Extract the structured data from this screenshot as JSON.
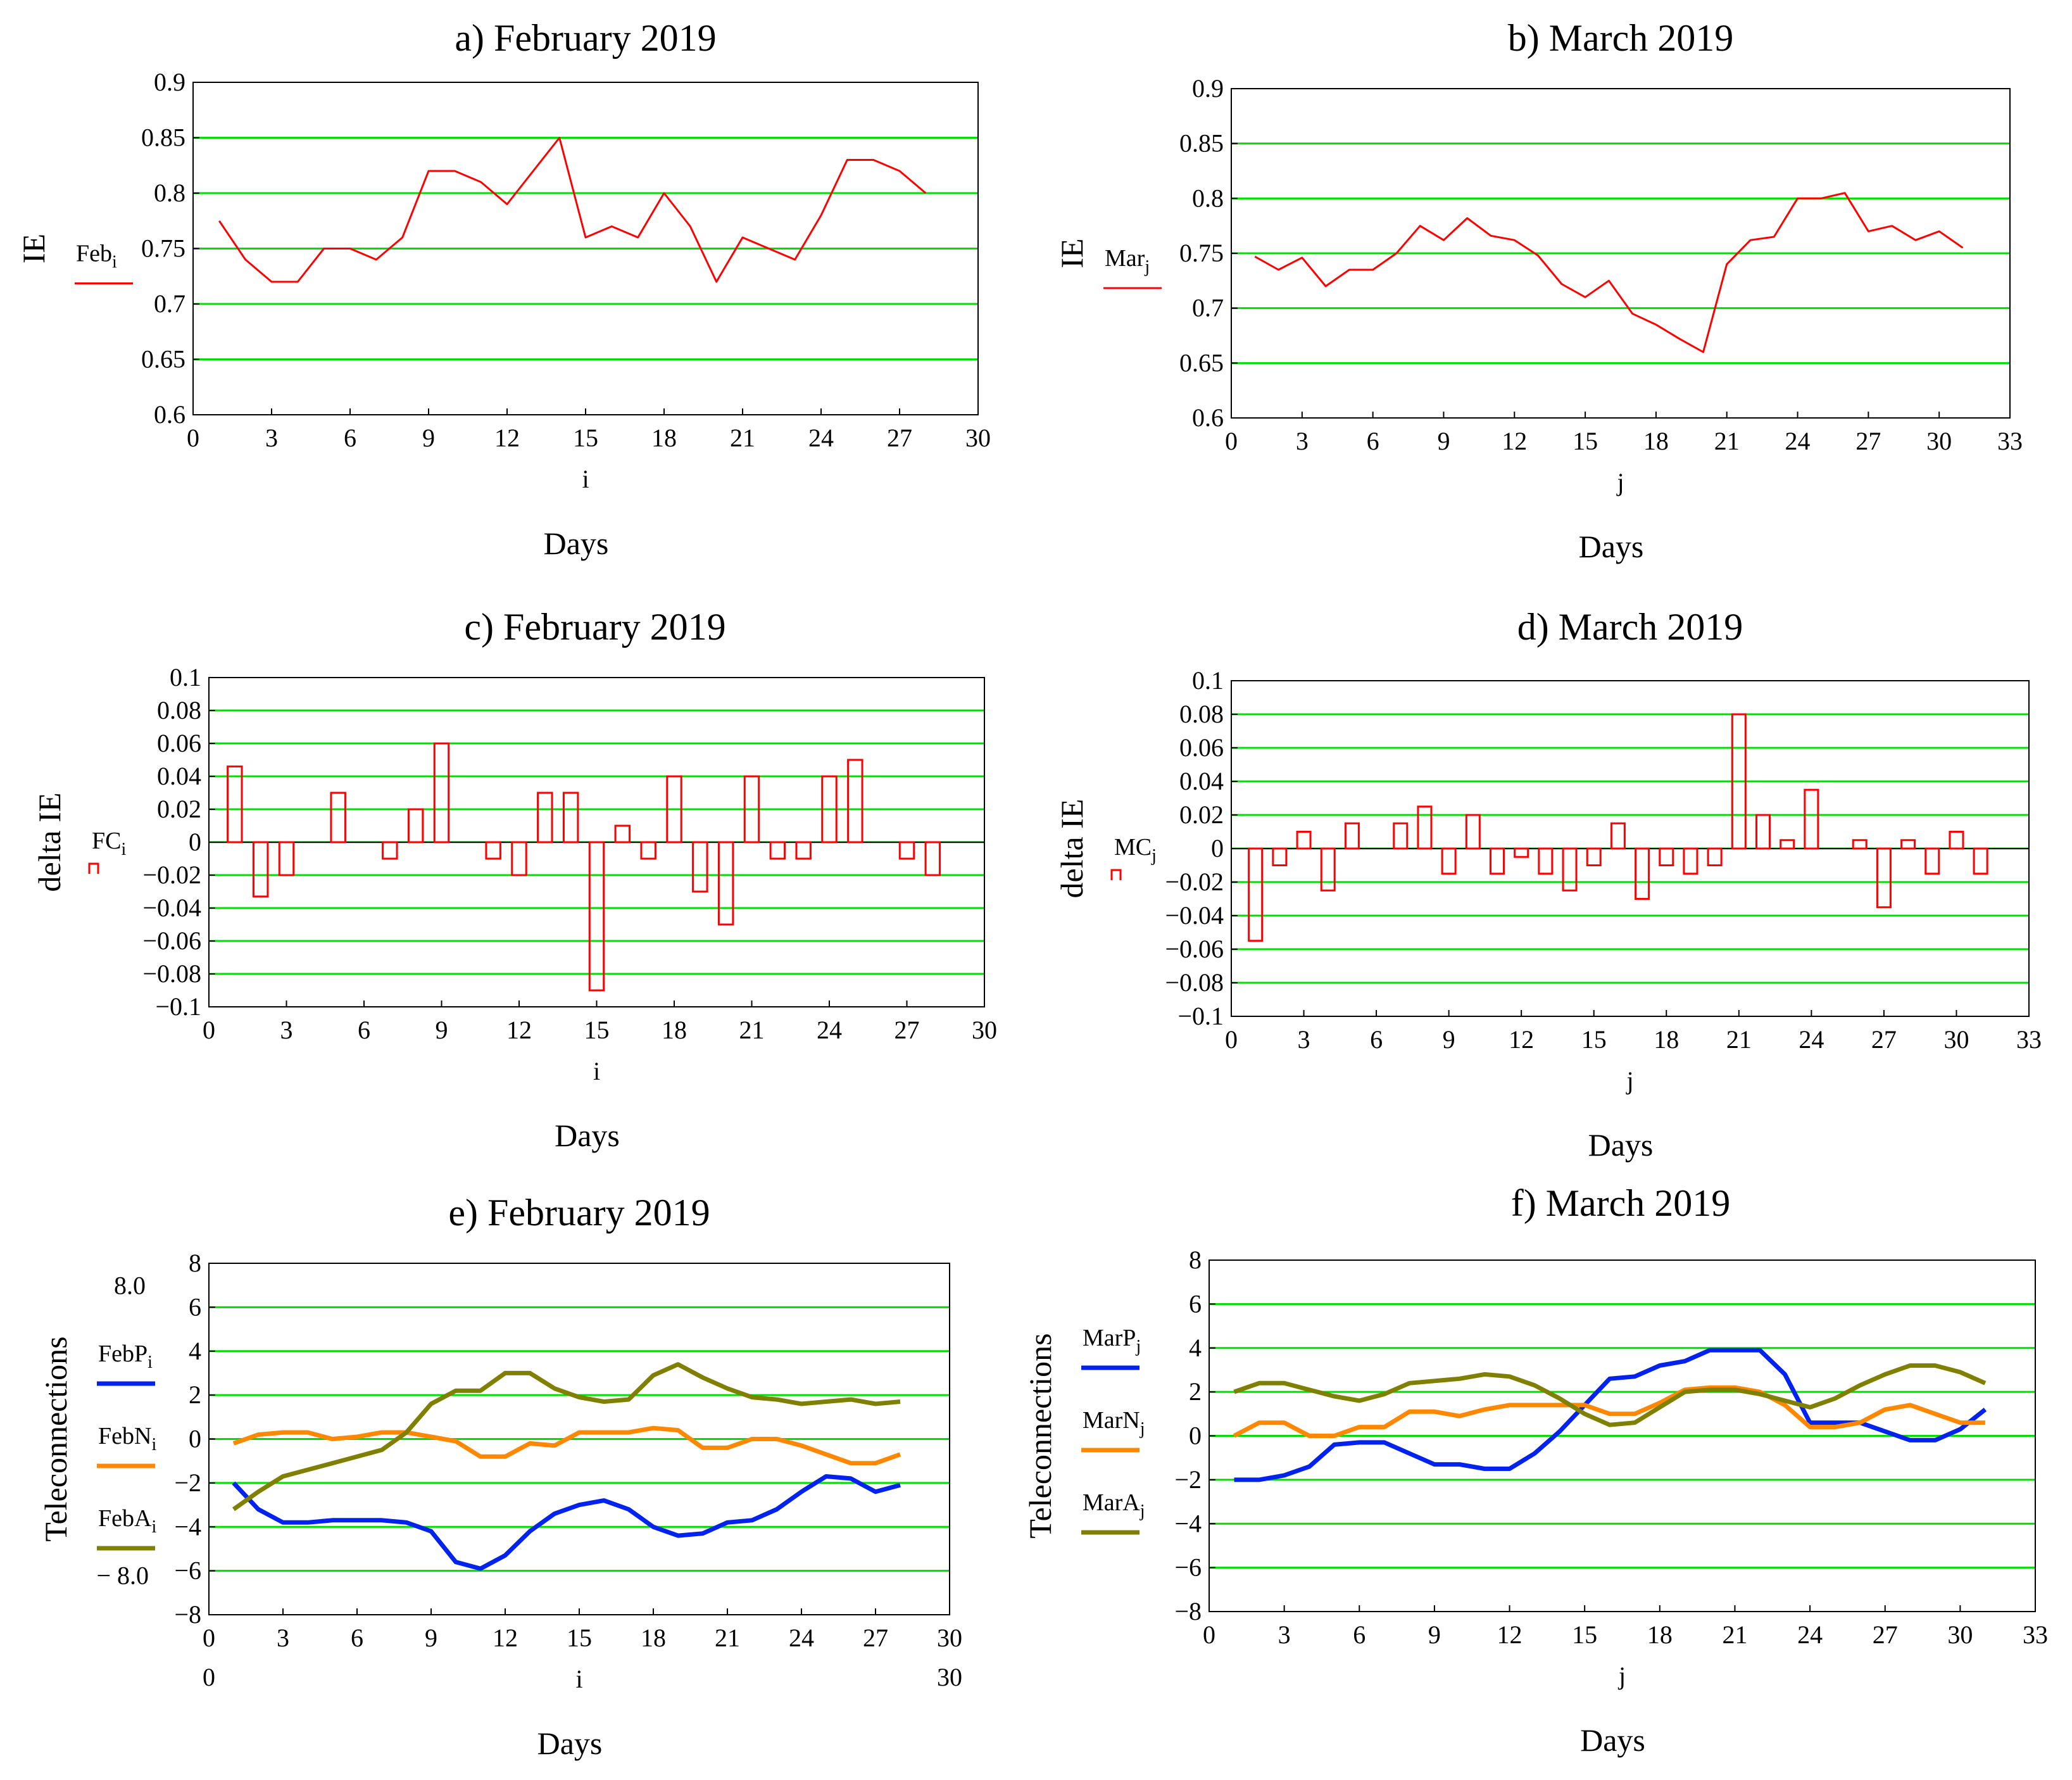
{
  "chart_data": [
    {
      "id": "a",
      "type": "line",
      "title": "a) February 2019",
      "ylabel": "IE",
      "index_label": "i",
      "xlabel": "Days",
      "xlim": [
        0,
        30
      ],
      "ylim": [
        0.6,
        0.9
      ],
      "xticks": [
        "0",
        "3",
        "6",
        "9",
        "12",
        "15",
        "18",
        "21",
        "24",
        "27",
        "30"
      ],
      "yticks": [
        "0.6",
        "0.65",
        "0.7",
        "0.75",
        "0.8",
        "0.85",
        "0.9"
      ],
      "grid": true,
      "series": [
        {
          "name": "Feb",
          "subscript": "i",
          "color": "#ff0000",
          "style": "line",
          "x": [
            1,
            2,
            3,
            4,
            5,
            6,
            7,
            8,
            9,
            10,
            11,
            12,
            13,
            14,
            15,
            16,
            17,
            18,
            19,
            20,
            21,
            22,
            23,
            24,
            25,
            26,
            27,
            28
          ],
          "values": [
            0.775,
            0.74,
            0.72,
            0.72,
            0.75,
            0.75,
            0.74,
            0.76,
            0.82,
            0.82,
            0.81,
            0.79,
            0.82,
            0.85,
            0.76,
            0.77,
            0.76,
            0.8,
            0.77,
            0.72,
            0.76,
            0.75,
            0.74,
            0.78,
            0.83,
            0.83,
            0.82,
            0.8
          ]
        }
      ]
    },
    {
      "id": "b",
      "type": "line",
      "title": "b) March 2019",
      "ylabel": "IE",
      "index_label": "j",
      "xlabel": "Days",
      "xlim": [
        0,
        33
      ],
      "ylim": [
        0.6,
        0.9
      ],
      "xticks": [
        "0",
        "3",
        "6",
        "9",
        "12",
        "15",
        "18",
        "21",
        "24",
        "27",
        "30",
        "33"
      ],
      "yticks": [
        "0.6",
        "0.65",
        "0.7",
        "0.75",
        "0.8",
        "0.85",
        "0.9"
      ],
      "grid": true,
      "series": [
        {
          "name": "Mar",
          "subscript": "j",
          "color": "#ff0000",
          "style": "line",
          "x": [
            1,
            2,
            3,
            4,
            5,
            6,
            7,
            8,
            9,
            10,
            11,
            12,
            13,
            14,
            15,
            16,
            17,
            18,
            19,
            20,
            21,
            22,
            23,
            24,
            25,
            26,
            27,
            28,
            29,
            30,
            31
          ],
          "values": [
            0.747,
            0.735,
            0.746,
            0.72,
            0.735,
            0.735,
            0.75,
            0.775,
            0.762,
            0.782,
            0.766,
            0.762,
            0.748,
            0.722,
            0.71,
            0.725,
            0.695,
            0.685,
            0.672,
            0.66,
            0.74,
            0.762,
            0.765,
            0.8,
            0.8,
            0.805,
            0.77,
            0.775,
            0.762,
            0.77,
            0.755
          ]
        }
      ]
    },
    {
      "id": "c",
      "type": "bar",
      "title": "c) February 2019",
      "ylabel": "delta IE",
      "index_label": "i",
      "xlabel": "Days",
      "xlim": [
        0,
        30
      ],
      "ylim": [
        -0.1,
        0.1
      ],
      "xticks": [
        "0",
        "3",
        "6",
        "9",
        "12",
        "15",
        "18",
        "21",
        "24",
        "27",
        "30"
      ],
      "yticks": [
        "−0.1",
        "−0.08",
        "−0.06",
        "−0.04",
        "−0.02",
        "0",
        "0.02",
        "0.04",
        "0.06",
        "0.08",
        "0.1"
      ],
      "grid": true,
      "series": [
        {
          "name": "FC",
          "subscript": "i",
          "color": "#ff0000",
          "style": "bar",
          "x": [
            1,
            2,
            3,
            4,
            5,
            6,
            7,
            8,
            9,
            10,
            11,
            12,
            13,
            14,
            15,
            16,
            17,
            18,
            19,
            20,
            21,
            22,
            23,
            24,
            25,
            26,
            27,
            28
          ],
          "values": [
            0.046,
            -0.033,
            -0.02,
            0,
            0.03,
            0,
            -0.01,
            0.02,
            0.06,
            0,
            -0.01,
            -0.02,
            0.03,
            0.03,
            -0.09,
            0.01,
            -0.01,
            0.04,
            -0.03,
            -0.05,
            0.04,
            -0.01,
            -0.01,
            0.04,
            0.05,
            0,
            -0.01,
            -0.02
          ]
        }
      ]
    },
    {
      "id": "d",
      "type": "bar",
      "title": "d) March 2019",
      "ylabel": "delta IE",
      "index_label": "j",
      "xlabel": "Days",
      "xlim": [
        0,
        33
      ],
      "ylim": [
        -0.1,
        0.1
      ],
      "xticks": [
        "0",
        "3",
        "6",
        "9",
        "12",
        "15",
        "18",
        "21",
        "24",
        "27",
        "30",
        "33"
      ],
      "yticks": [
        "−0.1",
        "−0.08",
        "−0.06",
        "−0.04",
        "−0.02",
        "0",
        "0.02",
        "0.04",
        "0.06",
        "0.08",
        "0.1"
      ],
      "grid": true,
      "series": [
        {
          "name": "MC",
          "subscript": "j",
          "color": "#ff0000",
          "style": "bar",
          "x": [
            1,
            2,
            3,
            4,
            5,
            6,
            7,
            8,
            9,
            10,
            11,
            12,
            13,
            14,
            15,
            16,
            17,
            18,
            19,
            20,
            21,
            22,
            23,
            24,
            25,
            26,
            27,
            28,
            29,
            30,
            31
          ],
          "values": [
            -0.055,
            -0.01,
            0.01,
            -0.025,
            0.015,
            0,
            0.015,
            0.025,
            -0.015,
            0.02,
            -0.015,
            -0.005,
            -0.015,
            -0.025,
            -0.01,
            0.015,
            -0.03,
            -0.01,
            -0.015,
            -0.01,
            0.08,
            0.02,
            0.005,
            0.035,
            0,
            0.005,
            -0.035,
            0.005,
            -0.015,
            0.01,
            -0.015
          ]
        }
      ]
    },
    {
      "id": "e",
      "type": "line",
      "title": "e) February 2019",
      "ylabel": "Teleconnections",
      "index_label": "i",
      "xlabel": "Days",
      "xlim": [
        0,
        30
      ],
      "ylim": [
        -8,
        8
      ],
      "xticks": [
        "0",
        "3",
        "6",
        "9",
        "12",
        "15",
        "18",
        "21",
        "24",
        "27",
        "30"
      ],
      "yticks": [
        "−8",
        "−6",
        "−4",
        "−2",
        "0",
        "2",
        "4",
        "6",
        "8"
      ],
      "axis_extras": {
        "top": "8.0",
        "bottom": "− 8.0",
        "xleft": "0",
        "xright": "30"
      },
      "grid": true,
      "series": [
        {
          "name": "FebP",
          "subscript": "i",
          "color": "#0022ee",
          "style": "thick",
          "x": [
            1,
            2,
            3,
            4,
            5,
            6,
            7,
            8,
            9,
            10,
            11,
            12,
            13,
            14,
            15,
            16,
            17,
            18,
            19,
            20,
            21,
            22,
            23,
            24,
            25,
            26,
            27,
            28
          ],
          "values": [
            -2.0,
            -3.2,
            -3.8,
            -3.8,
            -3.7,
            -3.7,
            -3.7,
            -3.8,
            -4.2,
            -5.6,
            -5.9,
            -5.3,
            -4.2,
            -3.4,
            -3.0,
            -2.8,
            -3.2,
            -4.0,
            -4.4,
            -4.3,
            -3.8,
            -3.7,
            -3.2,
            -2.4,
            -1.7,
            -1.8,
            -2.4,
            -2.1
          ]
        },
        {
          "name": "FebN",
          "subscript": "i",
          "color": "#ff8800",
          "style": "thick",
          "x": [
            1,
            2,
            3,
            4,
            5,
            6,
            7,
            8,
            9,
            10,
            11,
            12,
            13,
            14,
            15,
            16,
            17,
            18,
            19,
            20,
            21,
            22,
            23,
            24,
            25,
            26,
            27,
            28
          ],
          "values": [
            -0.2,
            0.2,
            0.3,
            0.3,
            0.0,
            0.1,
            0.3,
            0.3,
            0.1,
            -0.1,
            -0.8,
            -0.8,
            -0.2,
            -0.3,
            0.3,
            0.3,
            0.3,
            0.5,
            0.4,
            -0.4,
            -0.4,
            0.0,
            0.0,
            -0.3,
            -0.7,
            -1.1,
            -1.1,
            -0.7
          ]
        },
        {
          "name": "FebA",
          "subscript": "i",
          "color": "#808000",
          "style": "thick",
          "x": [
            1,
            2,
            3,
            4,
            5,
            6,
            7,
            8,
            9,
            10,
            11,
            12,
            13,
            14,
            15,
            16,
            17,
            18,
            19,
            20,
            21,
            22,
            23,
            24,
            25,
            26,
            27,
            28
          ],
          "values": [
            -3.2,
            -2.4,
            -1.7,
            -1.4,
            -1.1,
            -0.8,
            -0.5,
            0.3,
            1.6,
            2.2,
            2.2,
            3.0,
            3.0,
            2.3,
            1.9,
            1.7,
            1.8,
            2.9,
            3.4,
            2.8,
            2.3,
            1.9,
            1.8,
            1.6,
            1.7,
            1.8,
            1.6,
            1.7
          ]
        }
      ]
    },
    {
      "id": "f",
      "type": "line",
      "title": "f) March 2019",
      "ylabel": "Teleconnections",
      "index_label": "j",
      "xlabel": "Days",
      "xlim": [
        0,
        33
      ],
      "ylim": [
        -8,
        8
      ],
      "xticks": [
        "0",
        "3",
        "6",
        "9",
        "12",
        "15",
        "18",
        "21",
        "24",
        "27",
        "30",
        "33"
      ],
      "yticks": [
        "−8",
        "−6",
        "−4",
        "−2",
        "0",
        "2",
        "4",
        "6",
        "8"
      ],
      "grid": true,
      "series": [
        {
          "name": "MarP",
          "subscript": "j",
          "color": "#0022ee",
          "style": "thick",
          "x": [
            1,
            2,
            3,
            4,
            5,
            6,
            7,
            8,
            9,
            10,
            11,
            12,
            13,
            14,
            15,
            16,
            17,
            18,
            19,
            20,
            21,
            22,
            23,
            24,
            25,
            26,
            27,
            28,
            29,
            30,
            31
          ],
          "values": [
            -2.0,
            -2.0,
            -1.8,
            -1.4,
            -0.4,
            -0.3,
            -0.3,
            -0.8,
            -1.3,
            -1.3,
            -1.5,
            -1.5,
            -0.8,
            0.2,
            1.4,
            2.6,
            2.7,
            3.2,
            3.4,
            3.9,
            3.9,
            3.9,
            2.8,
            0.6,
            0.6,
            0.6,
            0.2,
            -0.2,
            -0.2,
            0.3,
            1.2
          ]
        },
        {
          "name": "MarN",
          "subscript": "j",
          "color": "#ff8800",
          "style": "thick",
          "x": [
            1,
            2,
            3,
            4,
            5,
            6,
            7,
            8,
            9,
            10,
            11,
            12,
            13,
            14,
            15,
            16,
            17,
            18,
            19,
            20,
            21,
            22,
            23,
            24,
            25,
            26,
            27,
            28,
            29,
            30,
            31
          ],
          "values": [
            0.0,
            0.6,
            0.6,
            0.0,
            0.0,
            0.4,
            0.4,
            1.1,
            1.1,
            0.9,
            1.2,
            1.4,
            1.4,
            1.4,
            1.4,
            1.0,
            1.0,
            1.5,
            2.1,
            2.2,
            2.2,
            2.0,
            1.4,
            0.4,
            0.4,
            0.6,
            1.2,
            1.4,
            1.0,
            0.6,
            0.6
          ]
        },
        {
          "name": "MarA",
          "subscript": "j",
          "color": "#808000",
          "style": "thick",
          "x": [
            1,
            2,
            3,
            4,
            5,
            6,
            7,
            8,
            9,
            10,
            11,
            12,
            13,
            14,
            15,
            16,
            17,
            18,
            19,
            20,
            21,
            22,
            23,
            24,
            25,
            26,
            27,
            28,
            29,
            30,
            31
          ],
          "values": [
            2.0,
            2.4,
            2.4,
            2.1,
            1.8,
            1.6,
            1.9,
            2.4,
            2.5,
            2.6,
            2.8,
            2.7,
            2.3,
            1.7,
            1.0,
            0.5,
            0.6,
            1.3,
            2.0,
            2.1,
            2.1,
            1.9,
            1.6,
            1.3,
            1.7,
            2.3,
            2.8,
            3.2,
            3.2,
            2.9,
            2.4
          ]
        }
      ]
    }
  ]
}
